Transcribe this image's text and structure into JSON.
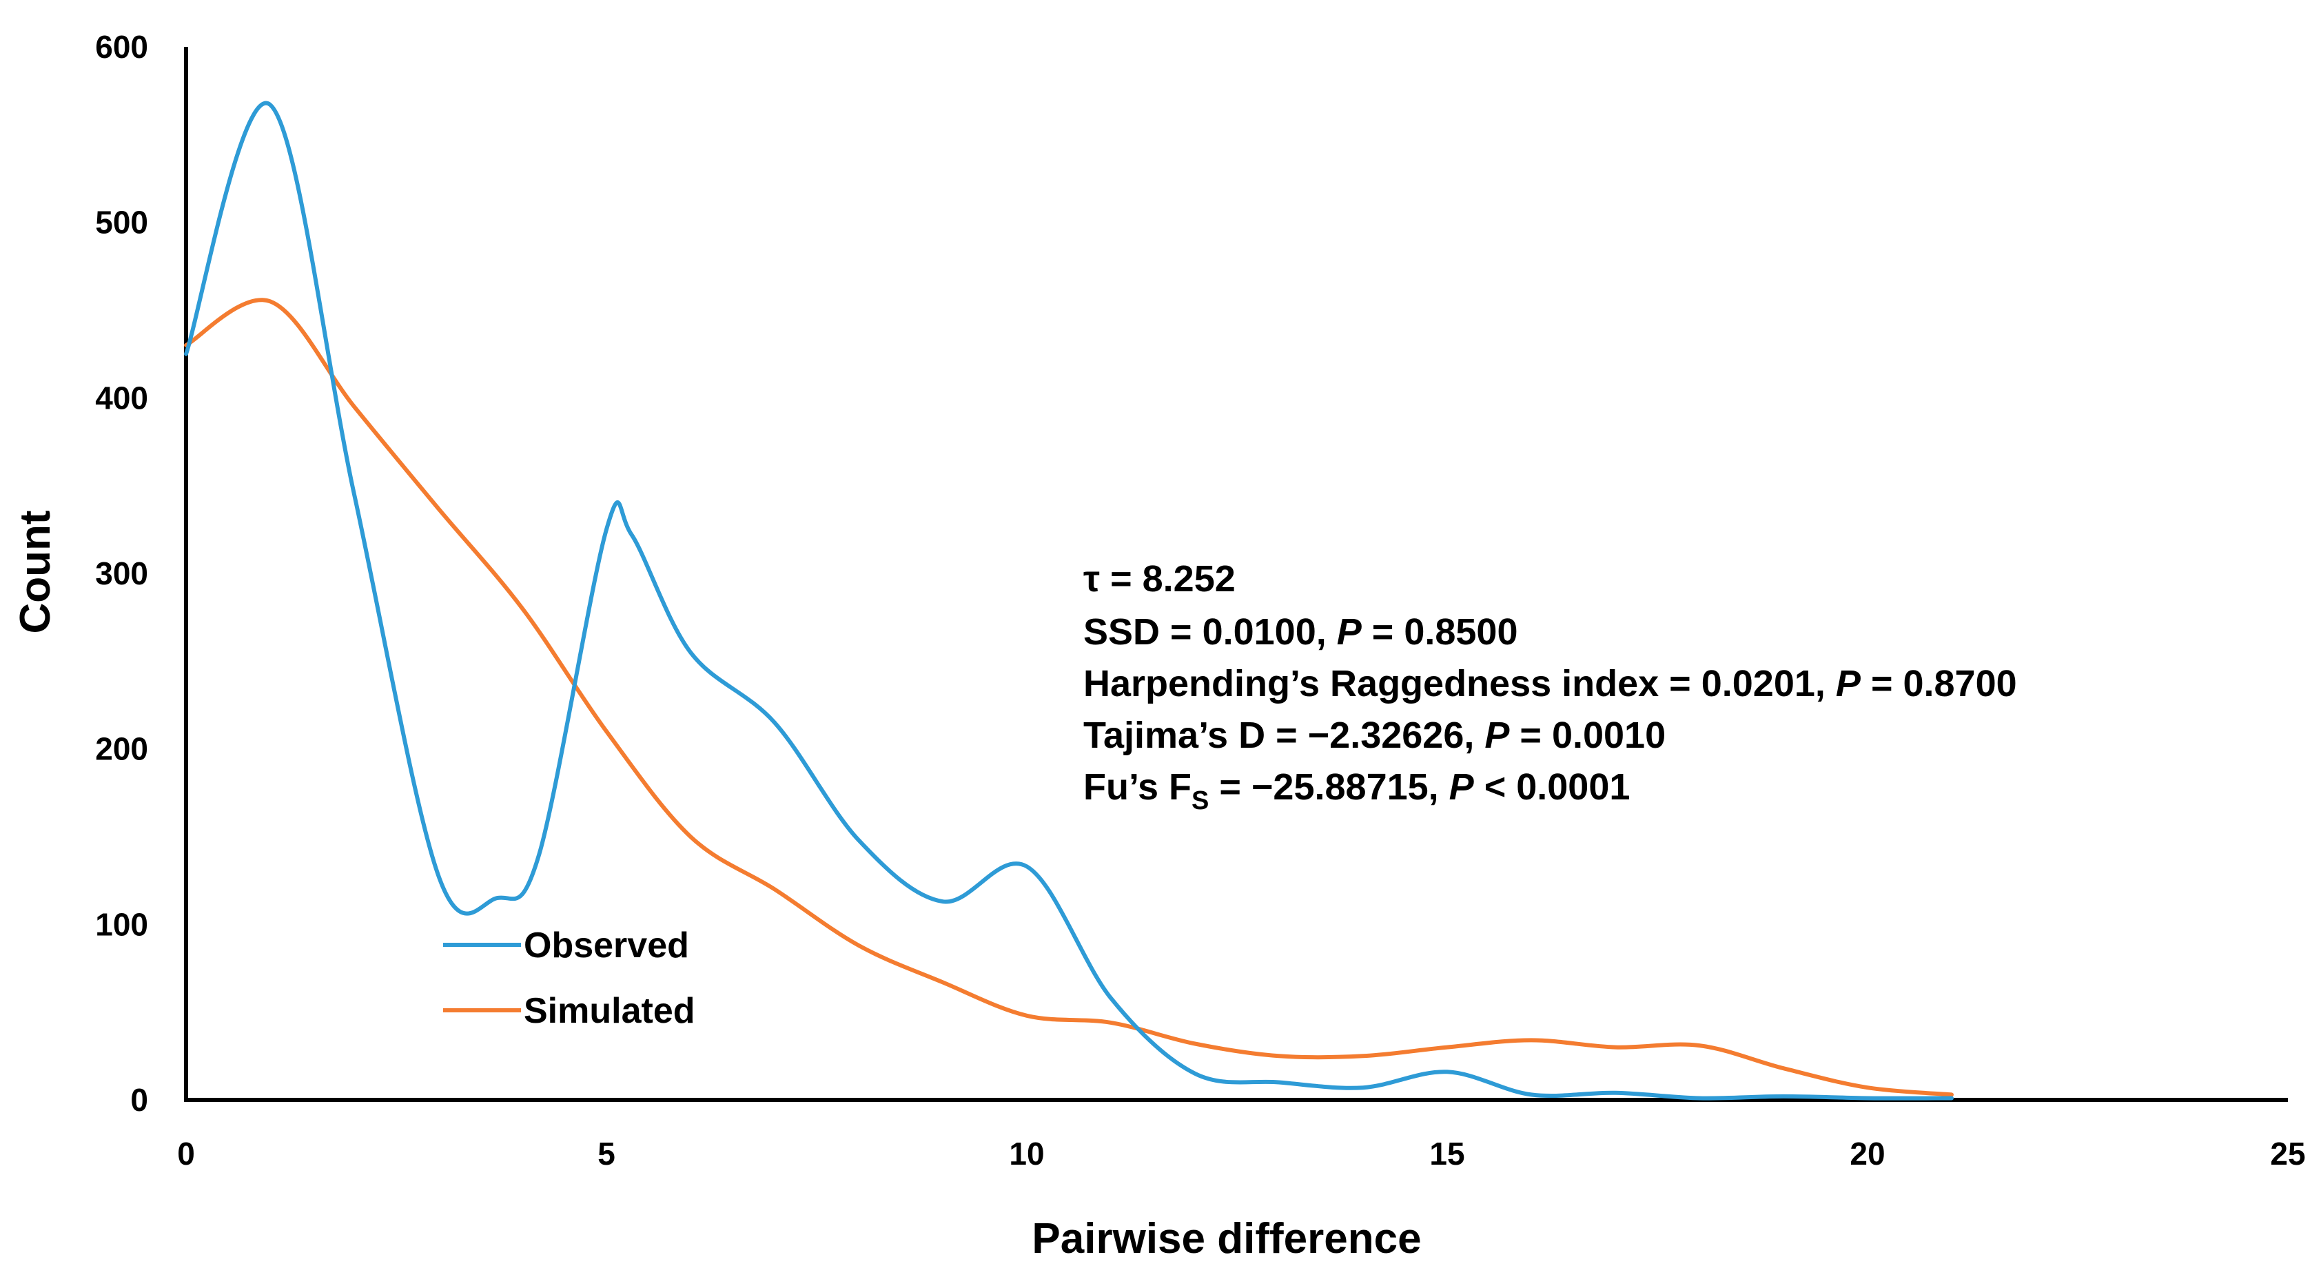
{
  "chart_data": {
    "type": "line",
    "title": "",
    "xlabel": "Pairwise difference",
    "ylabel": "Count",
    "xlim": [
      0,
      25
    ],
    "ylim": [
      0,
      600
    ],
    "xticks": [
      0,
      5,
      10,
      15,
      20,
      25
    ],
    "yticks": [
      0,
      100,
      200,
      300,
      400,
      500,
      600
    ],
    "grid": false,
    "legend_position": "lower-left",
    "series": [
      {
        "name": "Observed",
        "color": "#2E9BD6",
        "x": [
          0,
          1,
          2,
          3,
          3.7,
          4.2,
          5,
          5.3,
          6,
          7,
          8,
          9,
          10,
          11,
          12,
          13,
          14,
          15,
          16,
          17,
          18,
          19,
          20,
          21
        ],
        "y": [
          425,
          567,
          345,
          128,
          115,
          140,
          325,
          322,
          255,
          215,
          148,
          113,
          133,
          58,
          15,
          10,
          7,
          16,
          3,
          4,
          1,
          2,
          1,
          1
        ]
      },
      {
        "name": "Simulated",
        "color": "#F47C30",
        "x": [
          0,
          1,
          2,
          3,
          4,
          5,
          6,
          7,
          8,
          9,
          10,
          11,
          12,
          13,
          14,
          15,
          16,
          17,
          18,
          19,
          20,
          21
        ],
        "y": [
          430,
          455,
          395,
          337,
          280,
          210,
          150,
          120,
          88,
          67,
          48,
          44,
          32,
          25,
          25,
          30,
          34,
          30,
          31,
          18,
          7,
          3
        ]
      }
    ],
    "annotations": {
      "tau": "τ = 8.252",
      "ssd_label": "SSD = 0.0100, ",
      "ssd_p": "P",
      "ssd_p_value": " = 0.8500",
      "hri_label": "Harpending’s Raggedness index = 0.0201, ",
      "hri_p": "P",
      "hri_p_value": " = 0.8700",
      "tajima_label": "Tajima’s D = −2.32626, ",
      "tajima_p": "P",
      "tajima_p_value": " = 0.0010",
      "fu_label": "Fu’s F",
      "fu_sub": "S",
      "fu_value": " = −25.88715, ",
      "fu_p": "P",
      "fu_p_value": " < 0.0001"
    }
  }
}
